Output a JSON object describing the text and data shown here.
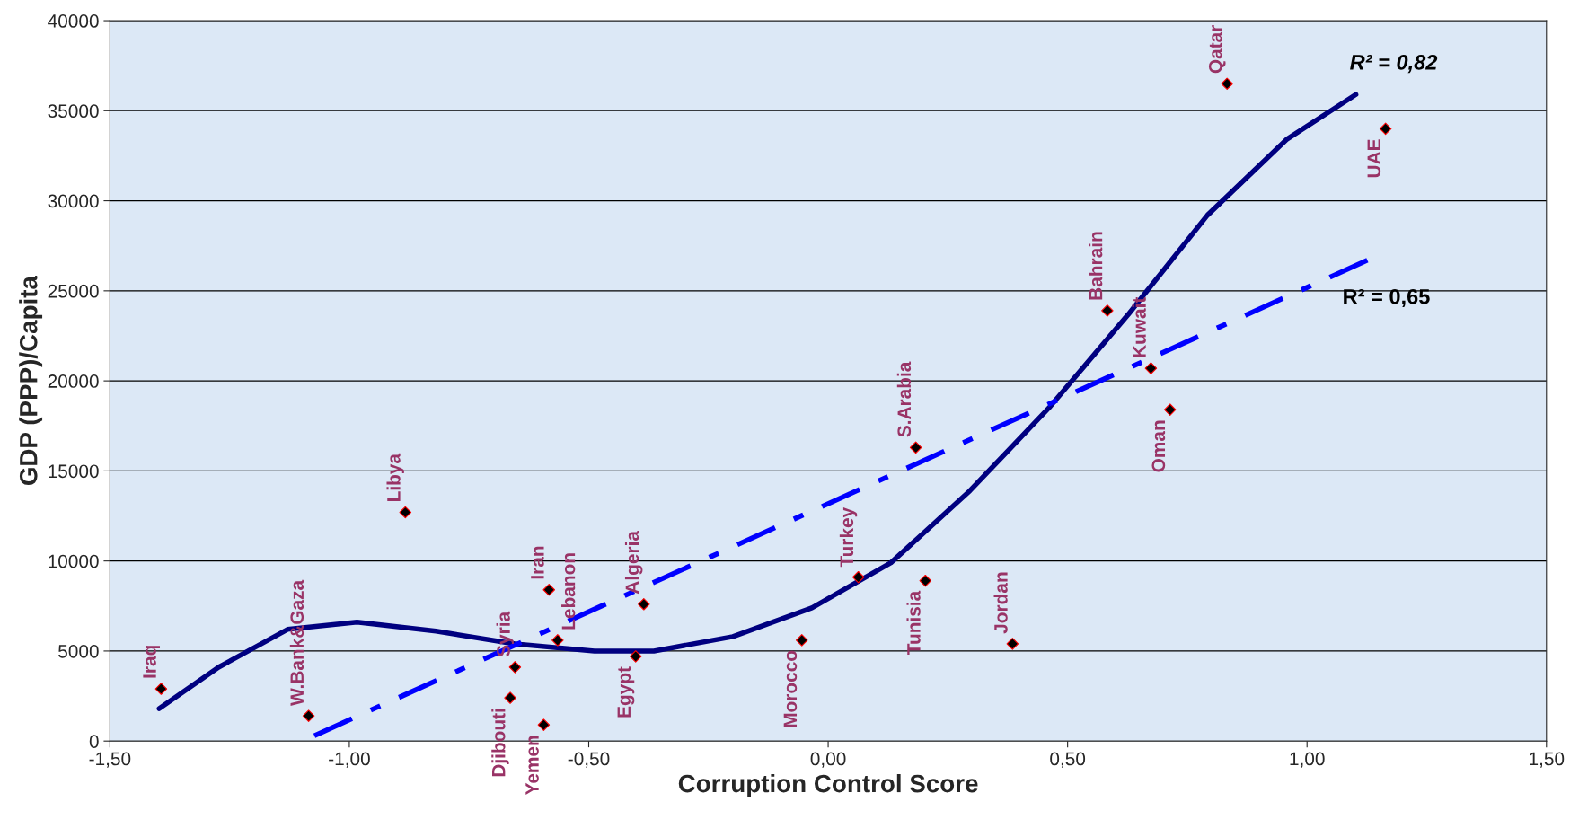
{
  "chart_data": {
    "type": "scatter",
    "xlabel": "Corruption Control Score",
    "ylabel": "GDP (PPP)/Capita",
    "xlim": [
      -1.5,
      1.5
    ],
    "ylim": [
      0,
      40000
    ],
    "xticks": [
      {
        "value": -1.5,
        "label": "-1,50"
      },
      {
        "value": -1.0,
        "label": "-1,00"
      },
      {
        "value": -0.5,
        "label": "-0,50"
      },
      {
        "value": 0,
        "label": "0,00"
      },
      {
        "value": 0.5,
        "label": "0,50"
      },
      {
        "value": 1.0,
        "label": "1,00"
      },
      {
        "value": 1.5,
        "label": "1,50"
      }
    ],
    "yticks": [
      0,
      5000,
      10000,
      15000,
      20000,
      25000,
      30000,
      35000,
      40000
    ],
    "grid": "y",
    "series": [
      {
        "marker": "diamond",
        "color": "#000000",
        "x": [
          -1.393,
          -1.085,
          -0.883,
          -0.664,
          -0.654,
          -0.594,
          -0.583,
          -0.565,
          -0.402,
          -0.385,
          -0.055,
          0.063,
          0.203,
          0.183,
          0.385,
          0.583,
          0.674,
          0.714,
          0.833,
          1.164
        ],
        "values": [
          2900,
          1400,
          12700,
          2400,
          4100,
          900,
          8400,
          5600,
          4700,
          7600,
          5600,
          9100,
          8900,
          16300,
          5400,
          23900,
          20700,
          18400,
          36500,
          34000
        ]
      },
      {
        "type": "line",
        "color": "#000080",
        "line_style": "solid",
        "x": [
          -1.397,
          -1.273,
          -1.129,
          -0.984,
          -0.819,
          -0.654,
          -0.488,
          -0.364,
          -0.199,
          -0.034,
          0.131,
          0.296,
          0.461,
          0.627,
          0.792,
          0.957,
          1.102
        ],
        "values": [
          1800,
          4100,
          6200,
          6600,
          6100,
          5400,
          5000,
          5000,
          5800,
          7400,
          9900,
          13900,
          18500,
          23700,
          29200,
          33400,
          35900
        ]
      },
      {
        "type": "line",
        "color": "#0000ff",
        "line_style": "dashed",
        "x": [
          -1.073,
          1.126
        ],
        "values": [
          300,
          26700
        ]
      }
    ],
    "annotations": [
      {
        "text": "Iraq",
        "x": -1.393,
        "y": 2900
      },
      {
        "text": "W.Bank&Gaza",
        "x": -1.085,
        "y": 1400
      },
      {
        "text": "Libya",
        "x": -0.883,
        "y": 12700
      },
      {
        "text": "Djibouti",
        "x": -0.664,
        "y": 2400
      },
      {
        "text": "Syria",
        "x": -0.654,
        "y": 4100
      },
      {
        "text": "Yemen",
        "x": -0.594,
        "y": 900
      },
      {
        "text": "Iran",
        "x": -0.583,
        "y": 8400
      },
      {
        "text": "Lebanon",
        "x": -0.565,
        "y": 5600
      },
      {
        "text": "Egypt",
        "x": -0.402,
        "y": 4700
      },
      {
        "text": "Algeria",
        "x": -0.385,
        "y": 7600
      },
      {
        "text": "Morocco",
        "x": -0.055,
        "y": 5600
      },
      {
        "text": "Turkey",
        "x": 0.063,
        "y": 9100
      },
      {
        "text": "Tunisia",
        "x": 0.203,
        "y": 8900
      },
      {
        "text": "S.Arabia",
        "x": 0.183,
        "y": 16300
      },
      {
        "text": "Jordan",
        "x": 0.385,
        "y": 5400
      },
      {
        "text": "Bahrain",
        "x": 0.583,
        "y": 23900
      },
      {
        "text": "Kuwait",
        "x": 0.674,
        "y": 20700
      },
      {
        "text": "Oman",
        "x": 0.714,
        "y": 18400
      },
      {
        "text": "Qatar",
        "x": 0.833,
        "y": 36500
      },
      {
        "text": "UAE",
        "x": 1.164,
        "y": 34000
      },
      {
        "text": "R² = 0,82",
        "x": 1.102,
        "y": 35900
      },
      {
        "text": "R² = 0,65",
        "x": 1.126,
        "y": 26700
      }
    ]
  }
}
